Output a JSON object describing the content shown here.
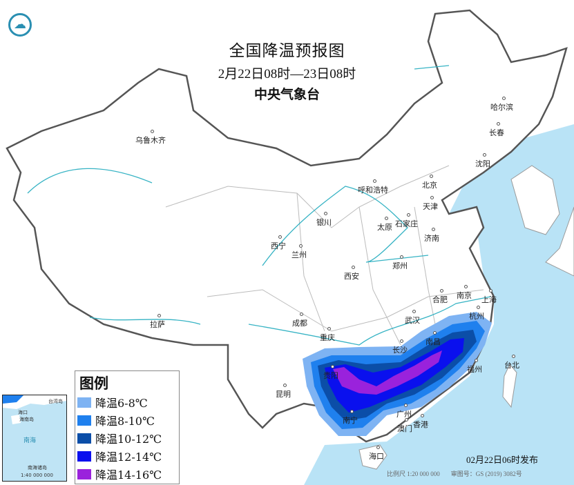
{
  "header": {
    "title": "全国降温预报图",
    "period": "2月22日08时—23日08时",
    "agency": "中央气象台"
  },
  "logo": {
    "icon": "cma-logo-icon"
  },
  "cities": [
    "乌鲁木齐",
    "呼和浩特",
    "北京",
    "天津",
    "哈尔滨",
    "长春",
    "沈阳",
    "银川",
    "石家庄",
    "太原",
    "济南",
    "西宁",
    "兰州",
    "郑州",
    "西安",
    "合肥",
    "南京",
    "上海",
    "成都",
    "武汉",
    "杭州",
    "拉萨",
    "重庆",
    "长沙",
    "南昌",
    "福州",
    "台北",
    "贵阳",
    "昆明",
    "南宁",
    "广州",
    "香港",
    "澳门",
    "海口"
  ],
  "legend": {
    "title": "图例",
    "items": [
      {
        "label": "降温6-8℃",
        "color": "#7eb3f3"
      },
      {
        "label": "降温8-10℃",
        "color": "#1f80ee"
      },
      {
        "label": "降温10-12℃",
        "color": "#0b4ea8"
      },
      {
        "label": "降温12-14℃",
        "color": "#0a10ee"
      },
      {
        "label": "降温14-16℃",
        "color": "#9a22dc"
      }
    ]
  },
  "inset": {
    "labels": [
      "台湾岛",
      "海口",
      "海南岛",
      "南海",
      "南海诸岛"
    ],
    "scale": "1:40 000 000"
  },
  "colors": {
    "sea": "#b9e3f6",
    "land": "#ffffff",
    "border": "#555555"
  },
  "footer": {
    "published": "02月22日06时发布",
    "scale": "比例尺 1:20 000 000",
    "approval": "审图号：GS (2019) 3082号"
  }
}
